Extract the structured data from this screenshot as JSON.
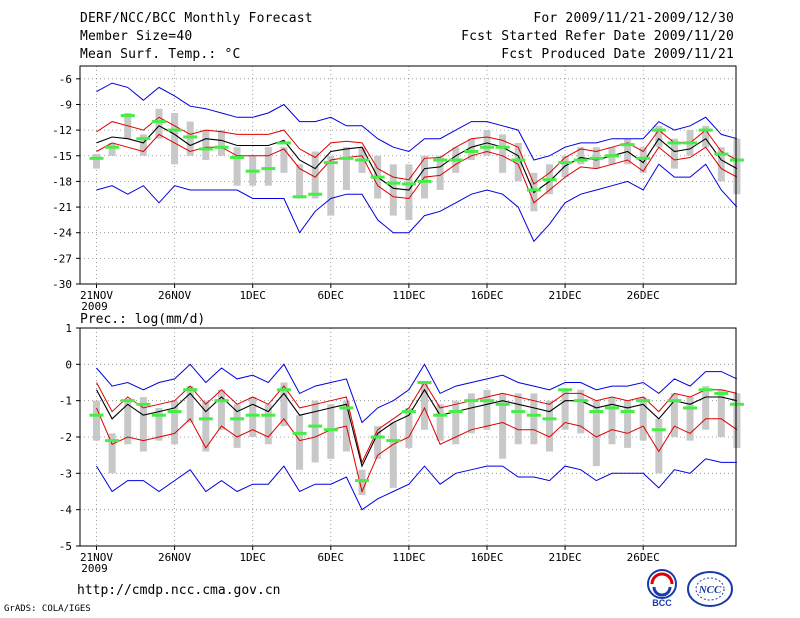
{
  "header": {
    "title": "DERF/NCC/BCC Monthly Forecast",
    "member_size": "Member Size=40",
    "variable": "Mean Surf. Temp.: °C",
    "period": "For 2009/11/21-2009/12/30",
    "fcst_started": "Fcst Started Refer Date 2009/11/20",
    "fcst_produced": "Fcst Produced Date 2009/11/21"
  },
  "footer": {
    "url": "http://cmdp.ncc.cma.gov.cn",
    "credit": "GrADS: COLA/IGES",
    "logo_left_text": "BCC",
    "logo_right_text": "NCC"
  },
  "colors": {
    "mean": "#000000",
    "inner": "#e00000",
    "outer": "#0000e0",
    "box": "#c8c8c8",
    "median": "#44ee44"
  },
  "chart_data": [
    {
      "type": "line",
      "title": "Mean Surf. Temp.: °C",
      "xlabel": "",
      "ylabel": "",
      "ylim": [
        -30,
        -4.5
      ],
      "yticks": [
        -6,
        -9,
        -12,
        -15,
        -18,
        -21,
        -24,
        -27,
        -30
      ],
      "xticks": [
        {
          "day": 1,
          "label": "21NOV"
        },
        {
          "day": 6,
          "label": "26NOV"
        },
        {
          "day": 11,
          "label": "1DEC"
        },
        {
          "day": 16,
          "label": "6DEC"
        },
        {
          "day": 21,
          "label": "11DEC"
        },
        {
          "day": 26,
          "label": "16DEC"
        },
        {
          "day": 31,
          "label": "21DEC"
        },
        {
          "day": 36,
          "label": "26DEC"
        }
      ],
      "year_label": "2009",
      "grid": true,
      "series": [
        {
          "name": "ensemble mean",
          "values": [
            -13.5,
            -12.8,
            -13,
            -13.5,
            -11.5,
            -12.5,
            -13.8,
            -13,
            -13.2,
            -13.8,
            -13.8,
            -13.8,
            -13.2,
            -15.5,
            -16.5,
            -14.5,
            -14.2,
            -14,
            -17.5,
            -18.8,
            -19,
            -16.5,
            -16.3,
            -15,
            -14,
            -13.5,
            -14,
            -15,
            -19.3,
            -18,
            -16.2,
            -15.2,
            -15.5,
            -15,
            -14.5,
            -15.8,
            -13,
            -14.5,
            -14.2,
            -13,
            -15.5,
            -16.5
          ]
        },
        {
          "name": "upper inner",
          "values": [
            -12.2,
            -11,
            -11.5,
            -12,
            -10.5,
            -11.5,
            -12.5,
            -12,
            -12.2,
            -12.5,
            -12.5,
            -12.5,
            -12,
            -14.2,
            -15.2,
            -13.5,
            -13.3,
            -13.5,
            -16.5,
            -17.5,
            -17.8,
            -15.3,
            -15.2,
            -14,
            -13,
            -12.8,
            -13.2,
            -14,
            -18.3,
            -17,
            -15.2,
            -14.2,
            -14.5,
            -14,
            -13.5,
            -14.5,
            -12,
            -13.5,
            -13.5,
            -12,
            -14.5,
            -15.5
          ]
        },
        {
          "name": "lower inner",
          "values": [
            -14.5,
            -13.5,
            -14,
            -14.5,
            -12.5,
            -13.5,
            -14.5,
            -14,
            -14,
            -15,
            -15,
            -15,
            -14.2,
            -16.5,
            -17.5,
            -15.5,
            -15.2,
            -15,
            -18.5,
            -19.8,
            -20,
            -17.5,
            -17.3,
            -16,
            -15,
            -14.5,
            -15,
            -16,
            -20.5,
            -19,
            -17.5,
            -16.3,
            -16.5,
            -16,
            -15.5,
            -16.8,
            -14,
            -15.5,
            -15.2,
            -14,
            -16.5,
            -17.5
          ]
        },
        {
          "name": "upper outer",
          "values": [
            -7.5,
            -6.5,
            -7,
            -8.5,
            -7,
            -8,
            -9.2,
            -9.5,
            -10,
            -10.5,
            -10.5,
            -10,
            -9,
            -11,
            -11,
            -10.5,
            -11.5,
            -11.5,
            -13,
            -14,
            -14.5,
            -13,
            -13,
            -12,
            -11,
            -11,
            -11.5,
            -12,
            -15.5,
            -15,
            -14,
            -13.5,
            -13.5,
            -13,
            -13,
            -13,
            -11,
            -12,
            -11.5,
            -10.5,
            -12.5,
            -13
          ]
        },
        {
          "name": "lower outer",
          "values": [
            -19,
            -18.5,
            -19.5,
            -18.5,
            -20.5,
            -18.5,
            -19,
            -19,
            -19,
            -19,
            -20,
            -20,
            -20,
            -24,
            -21.5,
            -20,
            -19.5,
            -19.5,
            -22.5,
            -24,
            -24,
            -22,
            -21.5,
            -20.5,
            -19.5,
            -19,
            -19.5,
            -21,
            -25,
            -23,
            -20.5,
            -19.5,
            -19,
            -18.5,
            -18,
            -19,
            -16,
            -17.5,
            -17.5,
            -16,
            -19,
            -21
          ]
        },
        {
          "name": "box top",
          "values": [
            -14.8,
            -13.5,
            -10,
            -12.5,
            -9.5,
            -10,
            -11,
            -12,
            -12,
            -14,
            -15,
            -14,
            -14,
            -16,
            -14.5,
            -15,
            -14,
            -14,
            -15,
            -16,
            -16,
            -15,
            -15,
            -14,
            -13,
            -12,
            -12.5,
            -13.5,
            -17,
            -16,
            -15,
            -14,
            -14,
            -14,
            -13,
            -14,
            -11.5,
            -13,
            -12,
            -11.5,
            -14,
            -13
          ]
        },
        {
          "name": "box bottom",
          "values": [
            -16.5,
            -15,
            -13,
            -15,
            -13,
            -16,
            -15,
            -15.5,
            -15,
            -18.5,
            -18.5,
            -18.5,
            -17,
            -20,
            -20,
            -22,
            -19,
            -17,
            -20,
            -22,
            -22.5,
            -20,
            -19,
            -17,
            -15.5,
            -15,
            -17,
            -18,
            -21.5,
            -19.5,
            -17.5,
            -16,
            -16.5,
            -16,
            -16,
            -17,
            -14,
            -16.5,
            -15,
            -14,
            -18,
            -19.5
          ]
        },
        {
          "name": "median",
          "values": [
            -15.3,
            -14,
            -10.3,
            -13,
            -11,
            -12,
            -12.8,
            -14.2,
            -14,
            -15.2,
            -16.8,
            -16.5,
            -13.5,
            -19.8,
            -19.5,
            -15.8,
            -15.3,
            -15.5,
            -17.5,
            -18.2,
            -18.3,
            -18,
            -15.5,
            -15.5,
            -14.5,
            -14,
            -14,
            -15.5,
            -19,
            -17.8,
            -15.8,
            -15.5,
            -15.3,
            -15,
            -13.7,
            -15.3,
            -12,
            -13.5,
            -13.5,
            -12,
            -14.8,
            -15.5
          ]
        }
      ]
    },
    {
      "type": "line",
      "title": "Prec.: log(mm/d)",
      "xlabel": "",
      "ylabel": "",
      "ylim": [
        -5,
        1
      ],
      "yticks": [
        1,
        0,
        -1,
        -2,
        -3,
        -4,
        -5
      ],
      "xticks": [
        {
          "day": 1,
          "label": "21NOV"
        },
        {
          "day": 6,
          "label": "26NOV"
        },
        {
          "day": 11,
          "label": "1DEC"
        },
        {
          "day": 16,
          "label": "6DEC"
        },
        {
          "day": 21,
          "label": "11DEC"
        },
        {
          "day": 26,
          "label": "16DEC"
        },
        {
          "day": 31,
          "label": "21DEC"
        },
        {
          "day": 36,
          "label": "26DEC"
        }
      ],
      "year_label": "2009",
      "grid": true,
      "series": [
        {
          "name": "ensemble mean",
          "values": [
            -0.7,
            -1.5,
            -1.1,
            -1.4,
            -1.3,
            -1.2,
            -0.8,
            -1.3,
            -0.9,
            -1.3,
            -1.1,
            -1.3,
            -0.8,
            -1.4,
            -1.3,
            -1.2,
            -1.1,
            -2.8,
            -1.9,
            -1.6,
            -1.4,
            -0.7,
            -1.4,
            -1.3,
            -1.2,
            -1.1,
            -1,
            -1.1,
            -1.2,
            -1.3,
            -1,
            -1,
            -1.2,
            -1.1,
            -1.2,
            -1.1,
            -1.5,
            -1,
            -1.1,
            -0.9,
            -0.9,
            -1
          ]
        },
        {
          "name": "upper inner",
          "values": [
            -0.5,
            -1.3,
            -0.9,
            -1.2,
            -1.1,
            -1,
            -0.6,
            -1.1,
            -0.7,
            -1.1,
            -0.9,
            -1.1,
            -0.6,
            -1.2,
            -1.1,
            -1,
            -0.9,
            -2.7,
            -1.8,
            -1.5,
            -1.2,
            -0.5,
            -1.2,
            -1.1,
            -1,
            -0.9,
            -0.8,
            -0.9,
            -1,
            -1.1,
            -0.8,
            -0.8,
            -1,
            -0.9,
            -1,
            -0.9,
            -1.3,
            -0.8,
            -0.9,
            -0.7,
            -0.7,
            -0.8
          ]
        },
        {
          "name": "lower inner",
          "values": [
            -1.2,
            -2.2,
            -2,
            -2.1,
            -2,
            -1.9,
            -1.5,
            -2.3,
            -1.7,
            -2,
            -1.8,
            -2,
            -1.5,
            -2.1,
            -2,
            -1.8,
            -1.7,
            -3.5,
            -2.5,
            -2.2,
            -2,
            -1.2,
            -2.2,
            -2,
            -1.8,
            -1.7,
            -1.6,
            -1.8,
            -1.8,
            -2,
            -1.6,
            -1.7,
            -2,
            -1.8,
            -1.9,
            -1.7,
            -2.4,
            -1.7,
            -1.9,
            -1.5,
            -1.5,
            -1.8
          ]
        },
        {
          "name": "upper outer",
          "values": [
            -0.1,
            -0.6,
            -0.5,
            -0.7,
            -0.5,
            -0.4,
            0,
            -0.5,
            -0.1,
            -0.4,
            -0.3,
            -0.5,
            0,
            -0.8,
            -0.6,
            -0.5,
            -0.4,
            -1.6,
            -1.2,
            -1,
            -0.7,
            0,
            -0.8,
            -0.6,
            -0.5,
            -0.4,
            -0.3,
            -0.5,
            -0.6,
            -0.7,
            -0.5,
            -0.5,
            -0.7,
            -0.6,
            -0.6,
            -0.5,
            -0.8,
            -0.4,
            -0.6,
            -0.2,
            -0.2,
            -0.4
          ]
        },
        {
          "name": "lower outer",
          "values": [
            -2.8,
            -3.5,
            -3.2,
            -3.2,
            -3.5,
            -3.2,
            -2.9,
            -3.5,
            -3.2,
            -3.5,
            -3.3,
            -3.3,
            -2.8,
            -3.5,
            -3.3,
            -3.3,
            -3.1,
            -4,
            -3.7,
            -3.5,
            -3.3,
            -2.8,
            -3.3,
            -3,
            -2.9,
            -2.8,
            -2.8,
            -3.1,
            -3.1,
            -3.2,
            -2.8,
            -2.9,
            -3.2,
            -3,
            -3,
            -3,
            -3.4,
            -2.9,
            -3,
            -2.6,
            -2.7,
            -2.7
          ]
        },
        {
          "name": "box top",
          "values": [
            -1,
            -1.9,
            -1,
            -0.9,
            -1.2,
            -1,
            -0.6,
            -1,
            -0.7,
            -1.1,
            -0.9,
            -1.1,
            -0.5,
            -1.4,
            -1,
            -1.1,
            -1,
            -2.9,
            -1.7,
            -1.6,
            -1.2,
            -0.5,
            -1.1,
            -1,
            -0.8,
            -0.7,
            -0.8,
            -0.8,
            -0.8,
            -1,
            -0.7,
            -0.7,
            -1,
            -0.9,
            -1,
            -0.9,
            -1.5,
            -0.8,
            -0.9,
            -0.6,
            -0.7,
            -0.8
          ]
        },
        {
          "name": "box bottom",
          "values": [
            -2.1,
            -3,
            -2.2,
            -2.4,
            -2.1,
            -2.2,
            -1.6,
            -2.4,
            -1.8,
            -2.3,
            -2,
            -2.2,
            -1.7,
            -2.9,
            -2.7,
            -2.6,
            -2.4,
            -3.6,
            -2.6,
            -3.4,
            -2.3,
            -1.8,
            -2.1,
            -2.2,
            -1.9,
            -1.8,
            -2.6,
            -2.2,
            -2.2,
            -2.4,
            -1.8,
            -1.9,
            -2.8,
            -2.2,
            -2.3,
            -2.1,
            -3,
            -2,
            -2.1,
            -1.8,
            -2,
            -2.3
          ]
        },
        {
          "name": "median",
          "values": [
            -1.4,
            -2.1,
            -1,
            -1.1,
            -1.4,
            -1.3,
            -0.7,
            -1.5,
            -1,
            -1.5,
            -1.4,
            -1.4,
            -0.7,
            -1.9,
            -1.7,
            -1.8,
            -1.2,
            -3.2,
            -2,
            -2.1,
            -1.3,
            -0.5,
            -1.4,
            -1.3,
            -1,
            -1,
            -1.1,
            -1.3,
            -1.4,
            -1.5,
            -0.7,
            -1,
            -1.3,
            -1.2,
            -1.3,
            -1,
            -1.8,
            -1,
            -1.2,
            -0.7,
            -0.8,
            -1.1
          ]
        }
      ]
    }
  ]
}
